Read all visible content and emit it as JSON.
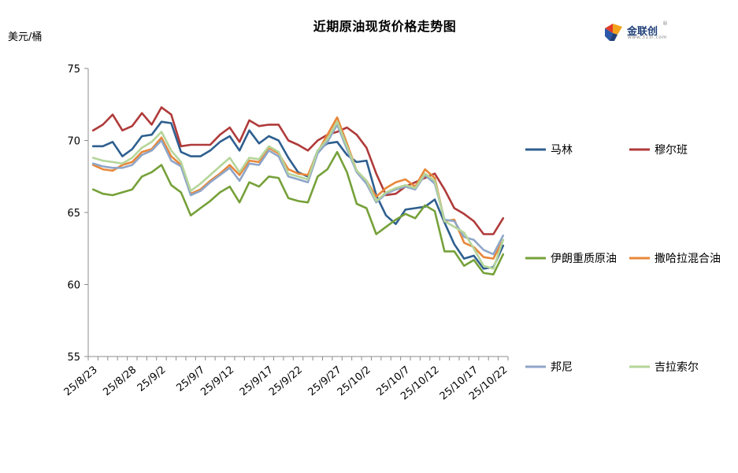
{
  "title": "近期原油现货价格走势图",
  "y_unit": "美元/桶",
  "logo": {
    "name": "金联创",
    "sub": "www.315i.com",
    "mark": "®"
  },
  "chart_data": {
    "type": "line",
    "title": "近期原油现货价格走势图",
    "ylabel": "美元/桶",
    "xlabel": "",
    "ylim": [
      55,
      75
    ],
    "yticks": [
      55,
      60,
      65,
      70,
      75
    ],
    "grid": false,
    "legend_position": "right",
    "x_tick_labels": [
      "25/8/23",
      "25/8/28",
      "25/9/2",
      "25/9/7",
      "25/9/12",
      "25/9/17",
      "25/9/22",
      "25/9/27",
      "25/10/2",
      "25/10/7",
      "25/10/12",
      "25/10/17",
      "25/10/22"
    ],
    "x": [
      "25/8/25",
      "25/8/26",
      "25/8/27",
      "25/8/28",
      "25/8/29",
      "25/9/1",
      "25/9/2",
      "25/9/3",
      "25/9/4",
      "25/9/5",
      "25/9/8",
      "25/9/9",
      "25/9/10",
      "25/9/11",
      "25/9/12",
      "25/9/15",
      "25/9/16",
      "25/9/17",
      "25/9/18",
      "25/9/19",
      "25/9/22",
      "25/9/23",
      "25/9/24",
      "25/9/25",
      "25/9/26",
      "25/9/29",
      "25/9/30",
      "25/10/1",
      "25/10/2",
      "25/10/3",
      "25/10/6",
      "25/10/7",
      "25/10/8",
      "25/10/9",
      "25/10/10",
      "25/10/13",
      "25/10/14",
      "25/10/15",
      "25/10/16",
      "25/10/17",
      "25/10/20",
      "25/10/21",
      "25/10/22"
    ],
    "series": [
      {
        "name": "马林",
        "color": "#2e5f8f",
        "values": [
          69.6,
          69.6,
          69.9,
          68.9,
          69.4,
          70.3,
          70.4,
          71.3,
          71.2,
          69.2,
          68.9,
          68.9,
          69.3,
          69.9,
          70.3,
          69.3,
          70.7,
          69.8,
          70.3,
          70.0,
          68.8,
          67.8,
          67.5,
          69.3,
          69.8,
          69.9,
          69.0,
          68.5,
          68.6,
          66.2,
          64.8,
          64.2,
          65.2,
          65.3,
          65.4,
          65.9,
          64.3,
          62.8,
          61.8,
          62.0,
          61.1,
          61.2,
          62.7
        ]
      },
      {
        "name": "穆尔班",
        "color": "#b03a3a",
        "values": [
          70.7,
          71.1,
          71.8,
          70.7,
          71.0,
          71.9,
          71.1,
          72.3,
          71.8,
          69.6,
          69.7,
          69.7,
          69.7,
          70.4,
          70.9,
          69.9,
          71.4,
          71.0,
          71.1,
          71.1,
          70.0,
          69.7,
          69.3,
          70.0,
          70.4,
          70.6,
          70.9,
          70.4,
          69.5,
          67.7,
          66.2,
          66.3,
          66.8,
          67.1,
          67.4,
          67.7,
          66.6,
          65.3,
          64.9,
          64.4,
          63.5,
          63.5,
          64.6
        ]
      },
      {
        "name": "伊朗重质原油",
        "color": "#76a13a",
        "values": [
          66.6,
          66.3,
          66.2,
          66.4,
          66.6,
          67.5,
          67.8,
          68.3,
          66.9,
          66.4,
          64.8,
          65.3,
          65.8,
          66.4,
          66.8,
          65.7,
          67.1,
          66.8,
          67.5,
          67.4,
          66.0,
          65.8,
          65.7,
          67.5,
          68.0,
          69.2,
          67.8,
          65.6,
          65.3,
          63.5,
          64.0,
          64.5,
          64.9,
          64.6,
          65.5,
          65.1,
          62.3,
          62.3,
          61.3,
          61.7,
          60.8,
          60.7,
          62.1
        ]
      },
      {
        "name": "撒哈拉混合油",
        "color": "#e8873a",
        "values": [
          68.3,
          68.0,
          67.9,
          68.3,
          68.5,
          69.2,
          69.4,
          70.2,
          68.9,
          68.3,
          66.3,
          66.6,
          67.2,
          67.7,
          68.3,
          67.6,
          68.6,
          68.5,
          69.5,
          69.1,
          68.0,
          67.7,
          67.6,
          69.2,
          70.4,
          71.6,
          69.8,
          67.9,
          67.2,
          66.1,
          66.7,
          67.1,
          67.3,
          66.8,
          68.0,
          67.4,
          64.4,
          64.5,
          62.9,
          62.6,
          61.9,
          61.8,
          63.1
        ]
      },
      {
        "name": "邦尼",
        "color": "#8fa6c8",
        "values": [
          68.4,
          68.2,
          68.1,
          68.1,
          68.3,
          69.0,
          69.3,
          70.0,
          68.6,
          68.2,
          66.2,
          66.5,
          67.1,
          67.6,
          68.1,
          67.2,
          68.4,
          68.3,
          69.3,
          68.9,
          67.5,
          67.3,
          67.1,
          69.1,
          69.9,
          71.1,
          69.4,
          67.8,
          67.0,
          65.7,
          66.3,
          66.6,
          66.8,
          66.6,
          67.6,
          67.0,
          64.5,
          64.4,
          63.3,
          63.1,
          62.4,
          62.1,
          63.4
        ]
      },
      {
        "name": "吉拉索尔",
        "color": "#b5d59a",
        "values": [
          68.8,
          68.6,
          68.5,
          68.4,
          68.8,
          69.5,
          69.9,
          70.6,
          69.3,
          68.5,
          66.5,
          67.0,
          67.6,
          68.2,
          68.8,
          67.8,
          68.8,
          68.7,
          69.6,
          69.2,
          67.7,
          67.5,
          67.3,
          69.3,
          70.1,
          71.3,
          69.6,
          67.9,
          67.2,
          65.8,
          66.4,
          66.7,
          66.9,
          66.7,
          67.7,
          67.2,
          64.4,
          64.0,
          63.6,
          62.5,
          61.3,
          61.1,
          63.1
        ]
      }
    ]
  }
}
